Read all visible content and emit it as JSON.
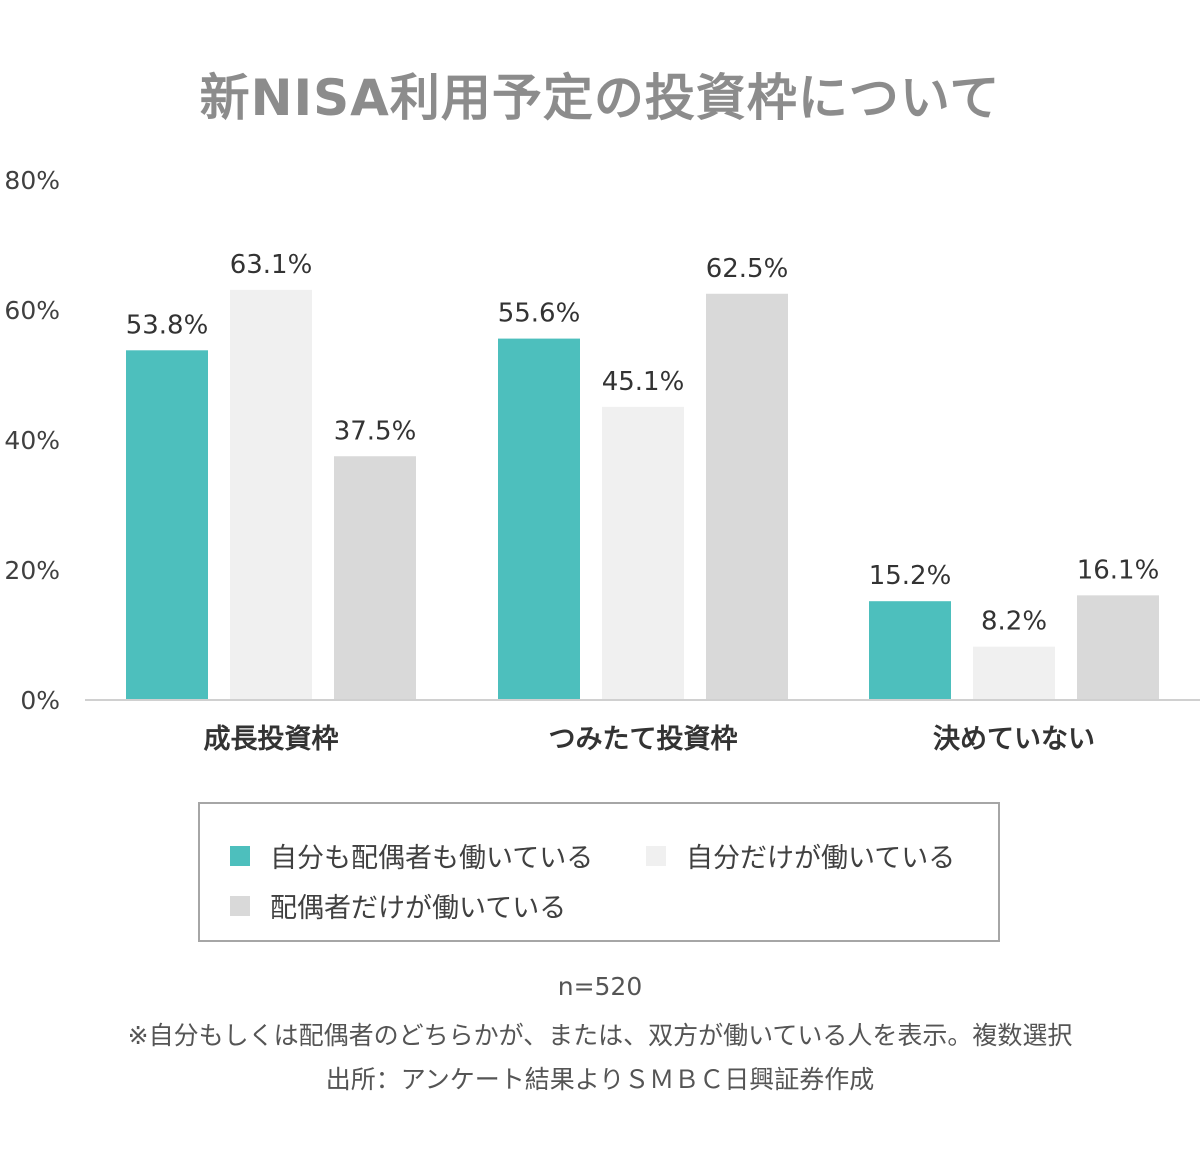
{
  "chart_data": {
    "type": "bar",
    "title": "新NISA利用予定の投資枠について",
    "categories": [
      "成長投資枠",
      "つみたて投資枠",
      "決めていない"
    ],
    "series": [
      {
        "name": "自分も配偶者も働いている",
        "values": [
          53.8,
          55.6,
          15.2
        ],
        "color": "#4dbfbd"
      },
      {
        "name": "自分だけが働いている",
        "values": [
          63.1,
          45.1,
          8.2
        ],
        "color": "#f0f0f0"
      },
      {
        "name": "配偶者だけが働いている",
        "values": [
          37.5,
          62.5,
          16.1
        ],
        "color": "#d9d9d9"
      }
    ],
    "value_suffix": "%",
    "ylim": [
      0,
      80
    ],
    "yticks": [
      0,
      20,
      40,
      60,
      80
    ],
    "ytick_labels": [
      "0%",
      "20%",
      "40%",
      "60%",
      "80%"
    ],
    "grid": false,
    "legend_position": "bottom"
  },
  "notes": {
    "sample": "n=520",
    "footnote": "※自分もしくは配偶者のどちらかが、または、双方が働いている人を表示。複数選択",
    "source": "出所：アンケート結果よりＳＭＢＣ日興証券作成"
  }
}
